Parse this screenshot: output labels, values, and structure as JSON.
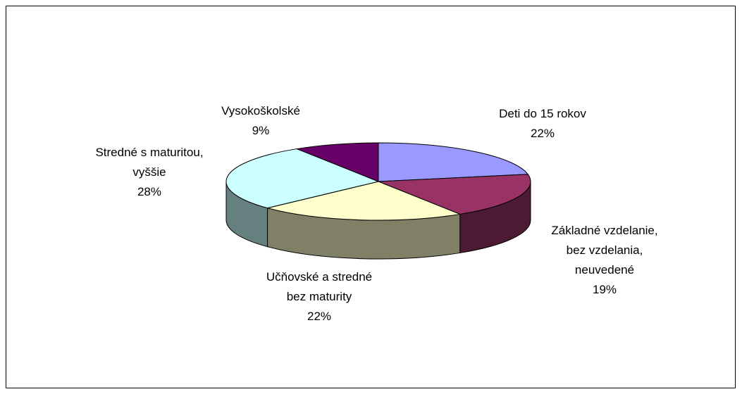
{
  "chart_data": {
    "type": "pie3d",
    "categories": [
      "Deti do 15  rokov",
      "Základné vzdelanie,\nbez vzdelania,\nneuvedené",
      "Učňovské a stredné\nbez maturity",
      "Stredné s maturitou,\nvyššie",
      "Vysokoškolské"
    ],
    "values": [
      22,
      19,
      22,
      28,
      9
    ],
    "value_labels": [
      "22%",
      "19%",
      "22%",
      "28%",
      "9%"
    ],
    "colors": [
      "#9999ff",
      "#993366",
      "#ffffcc",
      "#ccffff",
      "#660066"
    ]
  }
}
